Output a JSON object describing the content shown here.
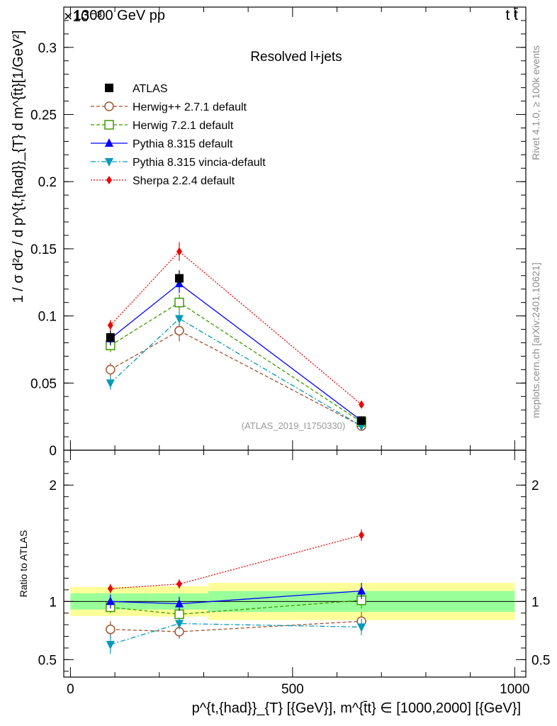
{
  "header": {
    "energy_label": "13000 GeV pp",
    "exponent_label": "×10⁻³",
    "process_label": "t t̄"
  },
  "side_labels": {
    "rivet": "Rivet 4.1.0, ≥ 100k events",
    "mcplots": "mcplots.cern.ch [arXiv:2401.10621]"
  },
  "chart_data": {
    "type": "scatter",
    "title": "Resolved l+jets",
    "analysis_id": "(ATLAS_2019_I1750330)",
    "ylabel": "1 / σ d²σ / d p^{t,{had}}_{T} d m^{t̄t}[1/GeV²]",
    "ratio_ylabel": "Ratio to ATLAS",
    "xlabel": "p^{t,{had}}_{T} [{GeV}], m^{t̄t} ∈ [1000,2000] [{GeV}]",
    "xlim": [
      -15,
      1025
    ],
    "ylim": [
      0,
      0.33
    ],
    "ratio_ylim": [
      0.35,
      2.3
    ],
    "x_ticks": [
      0,
      500,
      1000
    ],
    "y_ticks": [
      0,
      0.05,
      0.1,
      0.15,
      0.2,
      0.25,
      0.3
    ],
    "y_tick_labels": [
      "0",
      "0.05",
      "0.1",
      "0.15",
      "0.2",
      "0.25",
      "0.3"
    ],
    "ratio_ticks": [
      0.5,
      1,
      2
    ],
    "ratio_tick_labels": [
      "0.5",
      "1",
      "2"
    ],
    "x": [
      90,
      245,
      655
    ],
    "bin_edges": [
      0,
      180,
      310,
      1000
    ],
    "data": {
      "name": "ATLAS",
      "values": [
        0.084,
        0.128,
        0.022
      ],
      "errors": [
        0.005,
        0.006,
        0.0015
      ]
    },
    "data_band": {
      "stat_frac": [
        0.14,
        0.14,
        0.18
      ],
      "total_frac": [
        0.25,
        0.26,
        0.32
      ]
    },
    "series": [
      {
        "name": "Herwig++ 2.7.1 default",
        "color": "#a0522d",
        "marker": "open-circle",
        "dash": "5,3",
        "values": [
          0.06,
          0.089,
          0.018
        ],
        "errors": [
          0.005,
          0.008,
          0.002
        ],
        "ratio": [
          0.76,
          0.74,
          0.83
        ],
        "ratio_err": [
          0.07,
          0.06,
          0.08
        ]
      },
      {
        "name": "Herwig 7.2.1 default",
        "color": "#3e9b00",
        "marker": "open-square",
        "dash": "5,3",
        "values": [
          0.078,
          0.11,
          0.021
        ],
        "errors": [
          0.005,
          0.006,
          0.002
        ],
        "ratio": [
          0.95,
          0.89,
          1.01
        ],
        "ratio_err": [
          0.05,
          0.05,
          0.07
        ]
      },
      {
        "name": "Pythia 8.315 default",
        "color": "#0000ff",
        "marker": "filled-triangle-up",
        "dash": "",
        "values": [
          0.083,
          0.124,
          0.022
        ],
        "errors": [
          0.005,
          0.007,
          0.002
        ],
        "ratio": [
          1.0,
          0.98,
          1.09
        ],
        "ratio_err": [
          0.06,
          0.06,
          0.07
        ]
      },
      {
        "name": "Pythia 8.315 vincia-default",
        "color": "#0099bb",
        "marker": "filled-triangle-down",
        "dash": "7,3,2,3",
        "values": [
          0.05,
          0.098,
          0.018
        ],
        "errors": [
          0.005,
          0.006,
          0.002
        ],
        "ratio": [
          0.63,
          0.81,
          0.78
        ],
        "ratio_err": [
          0.08,
          0.05,
          0.07
        ]
      },
      {
        "name": "Sherpa 2.2.4 default",
        "color": "#ee0000",
        "marker": "filled-diamond",
        "dash": "2,2",
        "values": [
          0.093,
          0.148,
          0.034
        ],
        "errors": [
          0.004,
          0.007,
          0.002
        ],
        "ratio": [
          1.11,
          1.15,
          1.57
        ],
        "ratio_err": [
          0.04,
          0.04,
          0.05
        ]
      }
    ]
  }
}
